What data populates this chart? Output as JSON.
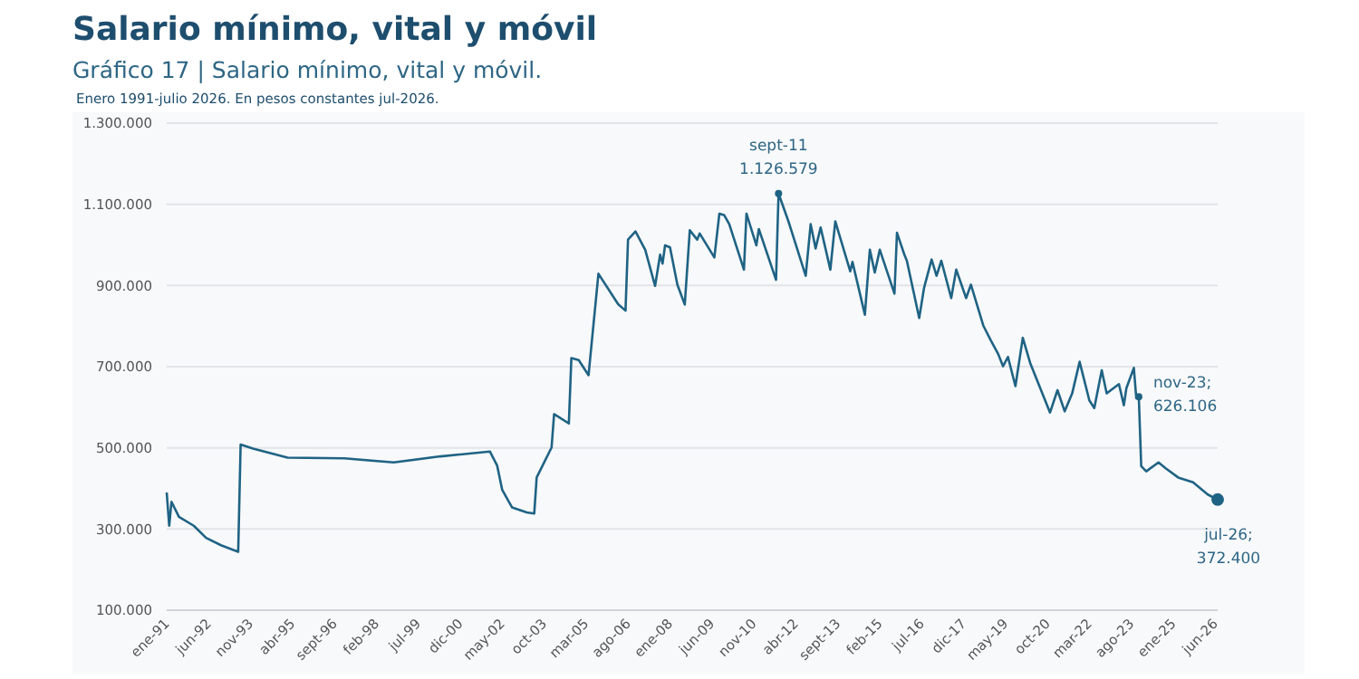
{
  "chart_data": {
    "type": "line",
    "title": "Salario mínimo, vital y móvil",
    "subtitle": "Gráfico 17 | Salario mínimo, vital y móvil.",
    "annotations": [
      "Enero 1991-julio 2026. En pesos constantes jul-2026.",
      {
        "text": "sept-11\n1.126.579",
        "x": "2011-09",
        "y": 1126579
      },
      {
        "text": "nov-23;\n626.106",
        "x": "2023-11",
        "y": 626106
      },
      {
        "text": "jul-26;\n372.400",
        "x": "2026-07",
        "y": 372400
      }
    ],
    "x": [
      "1991-01",
      "1991-02",
      "1991-03",
      "1991-06",
      "1991-12",
      "1992-05",
      "1992-11",
      "1993-06",
      "1993-07",
      "1993-12",
      "1995-02",
      "1997-01",
      "1998-09",
      "2000-04",
      "2001-12",
      "2002-03",
      "2002-05",
      "2002-09",
      "2003-03",
      "2003-06",
      "2003-07",
      "2004-01",
      "2004-02",
      "2004-08",
      "2004-09",
      "2004-12",
      "2005-04",
      "2005-08",
      "2006-04",
      "2006-07",
      "2006-08",
      "2006-11",
      "2007-03",
      "2007-07",
      "2007-09",
      "2007-10",
      "2007-11",
      "2008-01",
      "2008-04",
      "2008-07",
      "2008-09",
      "2008-12",
      "2009-01",
      "2009-07",
      "2009-09",
      "2009-11",
      "2010-01",
      "2010-07",
      "2010-08",
      "2010-12",
      "2011-01",
      "2011-08",
      "2011-09",
      "2012-01",
      "2012-08",
      "2012-10",
      "2012-12",
      "2013-02",
      "2013-06",
      "2013-08",
      "2014-02",
      "2014-03",
      "2014-08",
      "2014-10",
      "2014-12",
      "2015-02",
      "2015-08",
      "2015-09",
      "2015-12",
      "2016-01",
      "2016-06",
      "2016-08",
      "2016-11",
      "2017-01",
      "2017-03",
      "2017-07",
      "2017-09",
      "2018-01",
      "2018-03",
      "2018-08",
      "2018-11",
      "2019-02",
      "2019-04",
      "2019-06",
      "2019-09",
      "2019-12",
      "2020-03",
      "2020-11",
      "2021-02",
      "2021-05",
      "2021-08",
      "2021-11",
      "2022-03",
      "2022-05",
      "2022-08",
      "2022-10",
      "2023-03",
      "2023-05",
      "2023-06",
      "2023-09",
      "2023-10",
      "2023-11",
      "2023-12",
      "2024-02",
      "2024-07",
      "2024-10",
      "2025-03",
      "2025-09",
      "2026-03",
      "2026-07"
    ],
    "series": [
      {
        "color": "#1f6384",
        "values": [
          390000,
          308000,
          367000,
          330000,
          308000,
          278000,
          260000,
          244000,
          508000,
          498000,
          476000,
          474000,
          464000,
          479000,
          491000,
          456000,
          397000,
          353000,
          341000,
          338000,
          427000,
          501000,
          583000,
          560000,
          721000,
          716000,
          679000,
          929000,
          854000,
          838000,
          1013000,
          1033000,
          988000,
          899000,
          976000,
          954000,
          999000,
          994000,
          902000,
          853000,
          1036000,
          1013000,
          1028000,
          969000,
          1077000,
          1073000,
          1051000,
          939000,
          1077000,
          999000,
          1039000,
          914000,
          1126579,
          1058000,
          924000,
          1051000,
          991000,
          1043000,
          939000,
          1058000,
          935000,
          958000,
          828000,
          988000,
          932000,
          988000,
          880000,
          1030000,
          976000,
          961000,
          820000,
          895000,
          964000,
          924000,
          961000,
          869000,
          939000,
          869000,
          902000,
          801000,
          765000,
          731000,
          701000,
          724000,
          652000,
          771000,
          709000,
          587000,
          642000,
          590000,
          634000,
          712000,
          617000,
          598000,
          691000,
          634000,
          657000,
          605000,
          647000,
          697000,
          623000,
          626106,
          455000,
          442000,
          464000,
          449000,
          427000,
          415000,
          385000,
          372400
        ]
      }
    ],
    "xlim": [
      "1991-01",
      "2026-07"
    ],
    "xticks": [
      {
        "value": "1991-01",
        "label": "ene-91"
      },
      {
        "value": "1992-06",
        "label": "jun-92"
      },
      {
        "value": "1993-11",
        "label": "nov-93"
      },
      {
        "value": "1995-04",
        "label": "abr-95"
      },
      {
        "value": "1996-09",
        "label": "sept-96"
      },
      {
        "value": "1998-02",
        "label": "feb-98"
      },
      {
        "value": "1999-07",
        "label": "jul-99"
      },
      {
        "value": "2000-12",
        "label": "dic-00"
      },
      {
        "value": "2002-05",
        "label": "may-02"
      },
      {
        "value": "2003-10",
        "label": "oct-03"
      },
      {
        "value": "2005-03",
        "label": "mar-05"
      },
      {
        "value": "2006-08",
        "label": "ago-06"
      },
      {
        "value": "2008-01",
        "label": "ene-08"
      },
      {
        "value": "2009-06",
        "label": "jun-09"
      },
      {
        "value": "2010-11",
        "label": "nov-10"
      },
      {
        "value": "2012-04",
        "label": "abr-12"
      },
      {
        "value": "2013-09",
        "label": "sept-13"
      },
      {
        "value": "2015-02",
        "label": "feb-15"
      },
      {
        "value": "2016-07",
        "label": "jul-16"
      },
      {
        "value": "2017-12",
        "label": "dic-17"
      },
      {
        "value": "2019-05",
        "label": "may-19"
      },
      {
        "value": "2020-10",
        "label": "oct-20"
      },
      {
        "value": "2022-03",
        "label": "mar-22"
      },
      {
        "value": "2023-08",
        "label": "ago-23"
      },
      {
        "value": "2025-01",
        "label": "ene-25"
      },
      {
        "value": "2026-06",
        "label": "jun-26"
      }
    ],
    "ylim": [
      100000,
      1300000
    ],
    "yticks": [
      {
        "value": 100000,
        "label": "100.000"
      },
      {
        "value": 300000,
        "label": "300.000"
      },
      {
        "value": 500000,
        "label": "500.000"
      },
      {
        "value": 700000,
        "label": "700.000"
      },
      {
        "value": 900000,
        "label": "900.000"
      },
      {
        "value": 1100000,
        "label": "1.100.000"
      },
      {
        "value": 1300000,
        "label": "1.300.000"
      }
    ],
    "grid": "y",
    "marker": "none",
    "line_style": "solid"
  }
}
